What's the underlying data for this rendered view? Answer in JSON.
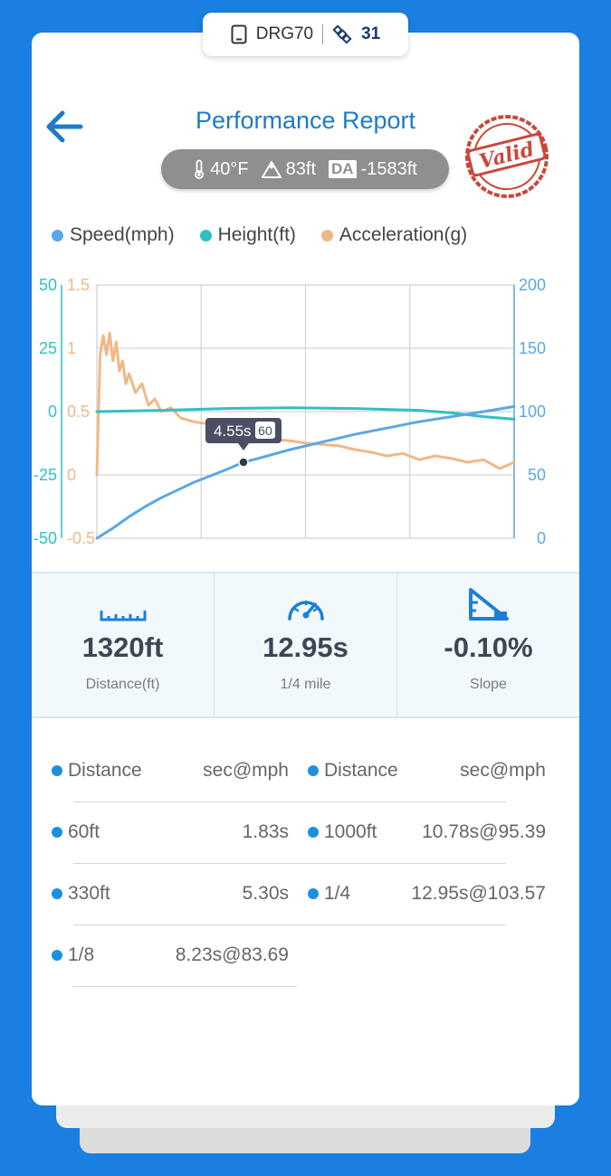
{
  "device": {
    "name": "DRG70",
    "satellites": "31",
    "icons": [
      "tablet-icon",
      "satellite-icon"
    ]
  },
  "header": {
    "title": "Performance Report",
    "back_icon": "arrow-left-icon",
    "stamp": "Valid"
  },
  "conditions": {
    "temperature": "40°F",
    "altitude": "83ft",
    "da_label": "DA",
    "density_altitude": "-1583ft"
  },
  "legend": [
    {
      "label": "Speed(mph)",
      "color": "#5aa7e6"
    },
    {
      "label": "Height(ft)",
      "color": "#2ec1c4"
    },
    {
      "label": "Acceleration(g)",
      "color": "#f0b887"
    }
  ],
  "chart_data": {
    "type": "line",
    "x_range_s": [
      0,
      12.95
    ],
    "grid": true,
    "axes": {
      "height_left": {
        "ticks": [
          "50",
          "25",
          "0",
          "-25",
          "-50"
        ],
        "range": [
          -50,
          50
        ],
        "color": "#2ec1c4"
      },
      "accel_left": {
        "ticks": [
          "1.5",
          "1",
          "0.5",
          "0",
          "-0.5"
        ],
        "range": [
          -0.5,
          1.5
        ],
        "color": "#f0b887"
      },
      "speed_right": {
        "ticks": [
          "200",
          "150",
          "100",
          "50",
          "0"
        ],
        "range": [
          0,
          200
        ],
        "color": "#5aa7e6"
      }
    },
    "tooltip": {
      "time": "4.55s",
      "badge": "60",
      "x": 4.55,
      "y": 60
    },
    "series": [
      {
        "name": "Speed(mph)",
        "axis": "speed_right",
        "x": [
          0,
          0.5,
          1,
          1.5,
          2,
          2.5,
          3,
          3.5,
          4,
          4.55,
          5,
          6,
          7,
          8,
          9,
          10,
          11,
          12,
          12.95
        ],
        "y": [
          0,
          8,
          17,
          25,
          32,
          38,
          44,
          49,
          54,
          60,
          63,
          70,
          76,
          82,
          87,
          92,
          96,
          100,
          104
        ]
      },
      {
        "name": "Height(ft)",
        "axis": "height_left",
        "x": [
          0,
          2,
          4,
          6,
          8,
          10,
          11,
          12,
          12.95
        ],
        "y": [
          0,
          0.5,
          1.2,
          1.5,
          1.2,
          0.5,
          -0.5,
          -2,
          -3
        ]
      },
      {
        "name": "Acceleration(g)",
        "axis": "accel_left",
        "x": [
          0,
          0.1,
          0.2,
          0.3,
          0.4,
          0.5,
          0.6,
          0.7,
          0.8,
          0.9,
          1.0,
          1.2,
          1.4,
          1.6,
          1.8,
          2.0,
          2.3,
          2.6,
          3.0,
          3.5,
          4.0,
          4.5,
          5.0,
          5.5,
          6.0,
          6.5,
          7.0,
          7.5,
          8.0,
          8.5,
          9.0,
          9.5,
          10.0,
          10.5,
          11.0,
          11.5,
          12.0,
          12.5,
          12.95
        ],
        "y": [
          0,
          0.95,
          1.1,
          0.95,
          1.12,
          0.9,
          1.05,
          0.82,
          0.9,
          0.72,
          0.8,
          0.65,
          0.72,
          0.55,
          0.6,
          0.5,
          0.53,
          0.45,
          0.42,
          0.4,
          0.35,
          0.33,
          0.3,
          0.28,
          0.27,
          0.25,
          0.24,
          0.23,
          0.2,
          0.18,
          0.15,
          0.17,
          0.12,
          0.15,
          0.13,
          0.1,
          0.12,
          0.05,
          0.1
        ]
      }
    ]
  },
  "stats": [
    {
      "icon": "ruler-icon",
      "value": "1320ft",
      "label": "Distance(ft)"
    },
    {
      "icon": "speedometer-icon",
      "value": "12.95s",
      "label": "1/4 mile"
    },
    {
      "icon": "slope-icon",
      "value": "-0.10%",
      "label": "Slope"
    }
  ],
  "splits": {
    "headers": {
      "distance": "Distance",
      "time": "sec@mph"
    },
    "left": [
      {
        "distance": "60ft",
        "value": "1.83s"
      },
      {
        "distance": "330ft",
        "value": "5.30s"
      },
      {
        "distance": "1/8",
        "value": "8.23s@83.69"
      }
    ],
    "right": [
      {
        "distance": "1000ft",
        "value": "10.78s@95.39"
      },
      {
        "distance": "1/4",
        "value": "12.95s@103.57"
      }
    ]
  }
}
